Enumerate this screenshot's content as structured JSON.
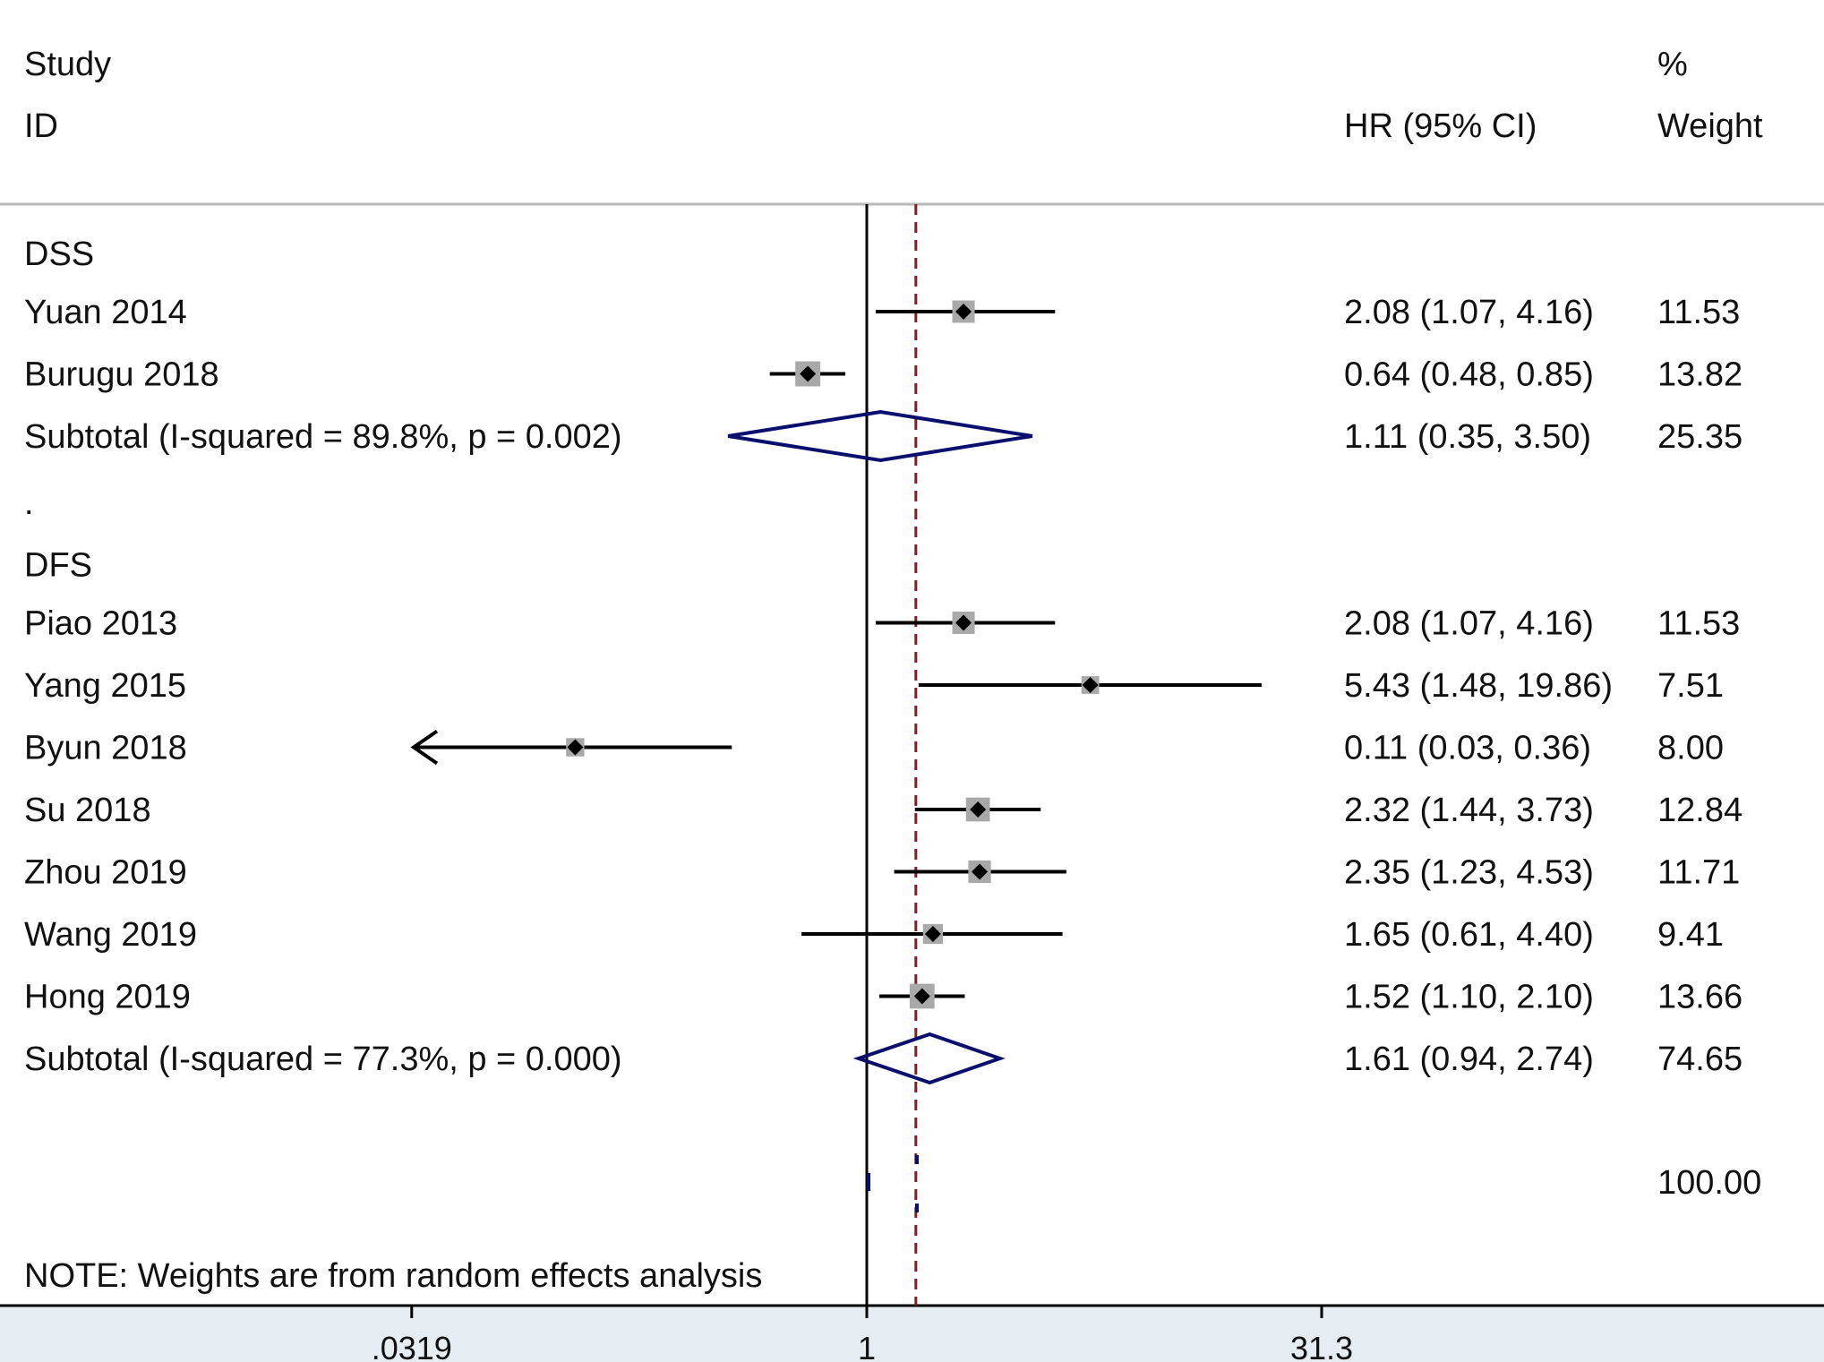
{
  "header": {
    "study": "Study",
    "id": "ID",
    "hr_ci": "HR (95% CI)",
    "pct": "%",
    "weight": "Weight"
  },
  "note": "NOTE: Weights are from random effects analysis",
  "colors": {
    "line": "#000000",
    "box": "#a9a9a9",
    "diamond": "#0a0f6e",
    "null_line": "#000000",
    "overall_line": "#8b1a1a",
    "axis_band": "#e6edf2",
    "rule": "#b9b9b9"
  },
  "chart_data": {
    "type": "forest",
    "measure": "HR",
    "scale": "log",
    "x_ticks": [
      {
        "value": 0.0319,
        "label": ".0319"
      },
      {
        "value": 1,
        "label": "1"
      },
      {
        "value": 31.3,
        "label": "31.3"
      }
    ],
    "null_value": 1,
    "overall_value": 1.45,
    "groups": [
      {
        "label": "DSS",
        "studies": [
          {
            "name": "Yuan 2014",
            "hr": 2.08,
            "lo": 1.07,
            "hi": 4.16,
            "ci_text": "2.08 (1.07, 4.16)",
            "weight": "11.53"
          },
          {
            "name": "Burugu 2018",
            "hr": 0.64,
            "lo": 0.48,
            "hi": 0.85,
            "ci_text": "0.64 (0.48, 0.85)",
            "weight": "13.82"
          }
        ],
        "subtotal": {
          "label": "Subtotal  (I-squared = 89.8%, p = 0.002)",
          "hr": 1.11,
          "lo": 0.35,
          "hi": 3.5,
          "ci_text": "1.11 (0.35, 3.50)",
          "weight": "25.35"
        }
      },
      {
        "separator": ".",
        "label": "DFS",
        "studies": [
          {
            "name": "Piao 2013",
            "hr": 2.08,
            "lo": 1.07,
            "hi": 4.16,
            "ci_text": "2.08 (1.07, 4.16)",
            "weight": "11.53"
          },
          {
            "name": "Yang 2015",
            "hr": 5.43,
            "lo": 1.48,
            "hi": 19.86,
            "ci_text": "5.43 (1.48, 19.86)",
            "weight": "7.51"
          },
          {
            "name": "Byun 2018",
            "hr": 0.11,
            "lo": 0.03,
            "hi": 0.36,
            "ci_text": "0.11 (0.03, 0.36)",
            "weight": "8.00",
            "arrow_left": true
          },
          {
            "name": "Su 2018",
            "hr": 2.32,
            "lo": 1.44,
            "hi": 3.73,
            "ci_text": "2.32 (1.44, 3.73)",
            "weight": "12.84"
          },
          {
            "name": "Zhou 2019",
            "hr": 2.35,
            "lo": 1.23,
            "hi": 4.53,
            "ci_text": "2.35 (1.23, 4.53)",
            "weight": "11.71"
          },
          {
            "name": "Wang 2019",
            "hr": 1.65,
            "lo": 0.61,
            "hi": 4.4,
            "ci_text": "1.65 (0.61, 4.40)",
            "weight": "9.41"
          },
          {
            "name": "Hong 2019",
            "hr": 1.52,
            "lo": 1.1,
            "hi": 2.1,
            "ci_text": "1.52 (1.10, 2.10)",
            "weight": "13.66"
          }
        ],
        "subtotal": {
          "label": "Subtotal  (I-squared = 77.3%, p = 0.000)",
          "hr": 1.61,
          "lo": 0.94,
          "hi": 2.74,
          "ci_text": "1.61 (0.94, 2.74)",
          "weight": "74.65"
        }
      }
    ],
    "overall": {
      "weight": "100.00"
    }
  }
}
